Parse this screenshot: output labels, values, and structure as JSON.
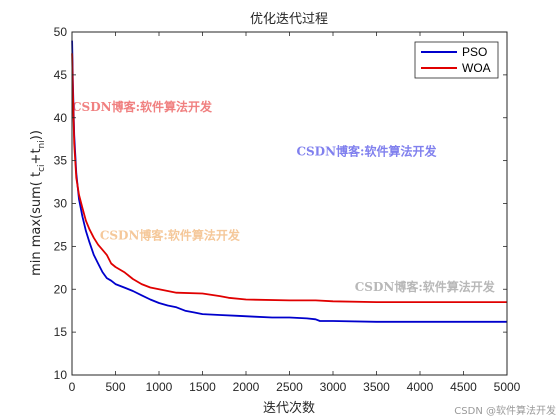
{
  "chart_data": {
    "type": "line",
    "title": "优化迭代过程",
    "xlabel": "迭代次数",
    "ylabel_main": "min max(sum( t",
    "ylabel_sub1": "ci",
    "ylabel_mid": "+t",
    "ylabel_sub2": "ni",
    "ylabel_end": "))",
    "xlim": [
      0,
      5000
    ],
    "ylim": [
      10,
      50
    ],
    "xticks": [
      0,
      500,
      1000,
      1500,
      2000,
      2500,
      3000,
      3500,
      4000,
      4500,
      5000
    ],
    "yticks": [
      10,
      15,
      20,
      25,
      30,
      35,
      40,
      45,
      50
    ],
    "legend_position": "top-right",
    "series": [
      {
        "name": "PSO",
        "color": "#0000cc",
        "points": [
          [
            1,
            49
          ],
          [
            10,
            44
          ],
          [
            25,
            38
          ],
          [
            50,
            33.5
          ],
          [
            80,
            30.5
          ],
          [
            120,
            28.5
          ],
          [
            160,
            26.8
          ],
          [
            200,
            25.5
          ],
          [
            250,
            24
          ],
          [
            300,
            23
          ],
          [
            350,
            22
          ],
          [
            400,
            21.3
          ],
          [
            450,
            21
          ],
          [
            500,
            20.6
          ],
          [
            600,
            20.2
          ],
          [
            700,
            19.8
          ],
          [
            800,
            19.3
          ],
          [
            900,
            18.8
          ],
          [
            1000,
            18.4
          ],
          [
            1100,
            18.1
          ],
          [
            1200,
            17.9
          ],
          [
            1300,
            17.5
          ],
          [
            1400,
            17.3
          ],
          [
            1500,
            17.1
          ],
          [
            1700,
            17
          ],
          [
            1900,
            16.9
          ],
          [
            2100,
            16.8
          ],
          [
            2300,
            16.7
          ],
          [
            2500,
            16.7
          ],
          [
            2700,
            16.6
          ],
          [
            2800,
            16.5
          ],
          [
            2850,
            16.3
          ],
          [
            3000,
            16.3
          ],
          [
            3500,
            16.2
          ],
          [
            4000,
            16.2
          ],
          [
            4500,
            16.2
          ],
          [
            5000,
            16.2
          ]
        ]
      },
      {
        "name": "WOA",
        "color": "#e00000",
        "points": [
          [
            1,
            47.5
          ],
          [
            10,
            43
          ],
          [
            25,
            37
          ],
          [
            50,
            33
          ],
          [
            80,
            31
          ],
          [
            120,
            29.5
          ],
          [
            160,
            28
          ],
          [
            200,
            27
          ],
          [
            250,
            26
          ],
          [
            300,
            25.2
          ],
          [
            350,
            24.6
          ],
          [
            400,
            24
          ],
          [
            450,
            23
          ],
          [
            500,
            22.6
          ],
          [
            600,
            22
          ],
          [
            700,
            21.2
          ],
          [
            800,
            20.6
          ],
          [
            900,
            20.2
          ],
          [
            1000,
            20
          ],
          [
            1100,
            19.8
          ],
          [
            1200,
            19.6
          ],
          [
            1500,
            19.5
          ],
          [
            1700,
            19.2
          ],
          [
            1800,
            19
          ],
          [
            2000,
            18.8
          ],
          [
            2500,
            18.7
          ],
          [
            2800,
            18.7
          ],
          [
            3000,
            18.6
          ],
          [
            3500,
            18.5
          ],
          [
            4000,
            18.5
          ],
          [
            4500,
            18.5
          ],
          [
            5000,
            18.5
          ]
        ]
      }
    ]
  },
  "watermarks": [
    {
      "text": "CSDN博客:软件算法开发",
      "x": 0,
      "y": 40.8,
      "color": "#f08080"
    },
    {
      "text": "CSDN博客:软件算法开发",
      "x": 2580,
      "y": 35.6,
      "color": "#8080ee"
    },
    {
      "text": "CSDN博客:软件算法开发",
      "x": 320,
      "y": 25.8,
      "color": "#f5c89a"
    },
    {
      "text": "CSDN博客:软件算法开发",
      "x": 3250,
      "y": 19.8,
      "color": "#b8b8b8"
    }
  ],
  "corner_watermark": "CSDN @软件算法开发"
}
